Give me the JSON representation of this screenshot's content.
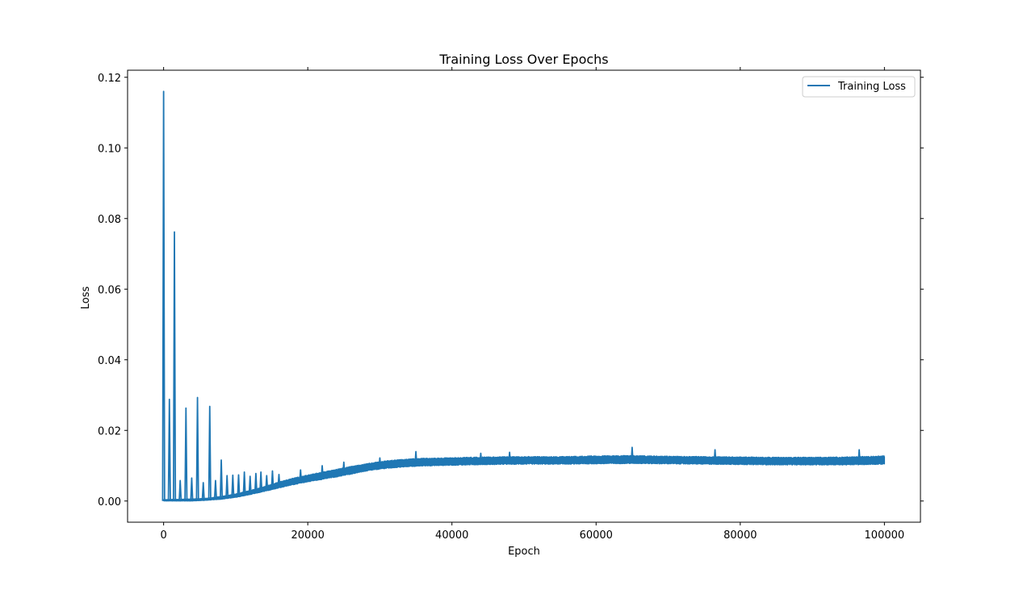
{
  "chart_data": {
    "type": "line",
    "title": "Training Loss Over Epochs",
    "xlabel": "Epoch",
    "ylabel": "Loss",
    "xlim": [
      -5000,
      105000
    ],
    "ylim": [
      -0.006,
      0.122
    ],
    "xticks": [
      0,
      20000,
      40000,
      60000,
      80000,
      100000
    ],
    "yticks": [
      0.0,
      0.02,
      0.04,
      0.06,
      0.08,
      0.1,
      0.12
    ],
    "xtick_labels": [
      "0",
      "20000",
      "40000",
      "60000",
      "80000",
      "100000"
    ],
    "ytick_labels": [
      "0.00",
      "0.02",
      "0.04",
      "0.06",
      "0.08",
      "0.10",
      "0.12"
    ],
    "grid": false,
    "legend": {
      "position": "top-right",
      "entries": [
        "Training Loss"
      ]
    },
    "series": [
      {
        "name": "Training Loss",
        "color": "#1f77b4",
        "baseline": {
          "x": [
            0,
            2000,
            4000,
            6000,
            8000,
            10000,
            12000,
            14000,
            16000,
            18000,
            20000,
            22000,
            24000,
            26000,
            28000,
            30000,
            32000,
            34000,
            36000,
            38000,
            40000,
            45000,
            50000,
            55000,
            60000,
            65000,
            70000,
            75000,
            80000,
            85000,
            90000,
            95000,
            100000
          ],
          "low": [
            0.0,
            0.0,
            0.0,
            0.0002,
            0.0005,
            0.001,
            0.0018,
            0.0027,
            0.0037,
            0.0046,
            0.0054,
            0.0061,
            0.0068,
            0.0076,
            0.0084,
            0.009,
            0.0094,
            0.0097,
            0.0099,
            0.01,
            0.0101,
            0.0103,
            0.0104,
            0.0104,
            0.0105,
            0.0106,
            0.0105,
            0.0104,
            0.0103,
            0.0102,
            0.0102,
            0.0102,
            0.0104
          ],
          "high": [
            0.0004,
            0.0005,
            0.0006,
            0.0008,
            0.0013,
            0.002,
            0.003,
            0.0041,
            0.0054,
            0.0065,
            0.0074,
            0.0082,
            0.009,
            0.0098,
            0.0105,
            0.0112,
            0.0116,
            0.0119,
            0.0121,
            0.0122,
            0.0123,
            0.0125,
            0.0126,
            0.0126,
            0.0128,
            0.0129,
            0.0127,
            0.0126,
            0.0125,
            0.0124,
            0.0124,
            0.0125,
            0.0128
          ]
        },
        "spikes": {
          "x": [
            0,
            800,
            1500,
            2300,
            3100,
            3900,
            4700,
            5500,
            6400,
            7200,
            8000,
            8800,
            9600,
            10400,
            11200,
            12000,
            12800,
            13500,
            14300,
            15100,
            16000,
            19000,
            22000,
            25000,
            30000,
            35000,
            44000,
            48000,
            65000,
            76500,
            96500
          ],
          "values": [
            0.116,
            0.0288,
            0.0762,
            0.0058,
            0.0263,
            0.0065,
            0.0293,
            0.0052,
            0.0268,
            0.0058,
            0.0116,
            0.0072,
            0.0073,
            0.0074,
            0.0082,
            0.007,
            0.0078,
            0.0082,
            0.0072,
            0.0085,
            0.0075,
            0.0088,
            0.01,
            0.011,
            0.0122,
            0.014,
            0.0135,
            0.0138,
            0.0152,
            0.0145,
            0.0145
          ]
        }
      }
    ]
  }
}
